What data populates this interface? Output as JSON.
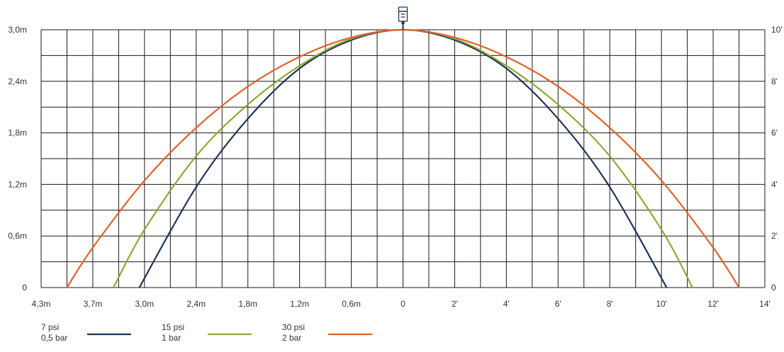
{
  "chart_data": {
    "type": "line",
    "title": "",
    "xlabel": "",
    "ylabel": "",
    "grid": true,
    "legend_position": "bottom-left",
    "left_y_ticks": [
      "0",
      "0,6m",
      "1,2m",
      "1,8m",
      "2,4m",
      "3,0m"
    ],
    "right_y_ticks": [
      "0",
      "2'",
      "4'",
      "6'",
      "8'",
      "10'"
    ],
    "bottom_ticks_left": [
      "4,3m",
      "3,7m",
      "3,0m",
      "2,4m",
      "1,8m",
      "1,2m",
      "0,6m",
      "0"
    ],
    "bottom_ticks_right": [
      "2'",
      "4'",
      "6'",
      "8'",
      "10'",
      "12'",
      "14'"
    ],
    "x_range_ft": [
      -14,
      14
    ],
    "y_range_ft": [
      0,
      10
    ],
    "series": [
      {
        "name": "7 psi 0,5 bar",
        "color": "#1f3354",
        "x_ft": [
          -10.2,
          -8,
          -6,
          -4,
          -2,
          0,
          2,
          4,
          6,
          8,
          10.2
        ],
        "y_ft": [
          0,
          3.9,
          6.55,
          8.5,
          9.6,
          10,
          9.6,
          8.5,
          6.55,
          3.9,
          0
        ]
      },
      {
        "name": "15 psi 1 bar",
        "color": "#8aaa35",
        "x_ft": [
          -11.2,
          -10,
          -8,
          -6,
          -4,
          -2,
          0,
          2,
          4,
          6,
          8,
          10,
          11.2
        ],
        "y_ft": [
          0,
          2.25,
          5.1,
          7.1,
          8.6,
          9.65,
          10,
          9.65,
          8.6,
          7.1,
          5.1,
          2.25,
          0
        ]
      },
      {
        "name": "30 psi 2 bar",
        "color": "#e1622a",
        "x_ft": [
          -13,
          -12,
          -10,
          -8,
          -6,
          -4,
          -2,
          0,
          2,
          4,
          6,
          8,
          10,
          12,
          13
        ],
        "y_ft": [
          0,
          1.55,
          4.15,
          6.2,
          7.8,
          8.95,
          9.7,
          10,
          9.7,
          8.95,
          7.8,
          6.2,
          4.15,
          1.55,
          0
        ]
      }
    ]
  },
  "legend": [
    {
      "line1": "7 psi",
      "line2": "0,5 bar",
      "color": "#1f3354"
    },
    {
      "line1": "15 psi",
      "line2": "1 bar",
      "color": "#8aaa35"
    },
    {
      "line1": "30 psi",
      "line2": "2 bar",
      "color": "#e1622a"
    }
  ],
  "icons": {
    "sprinkler": "sprinkler-head-icon"
  }
}
